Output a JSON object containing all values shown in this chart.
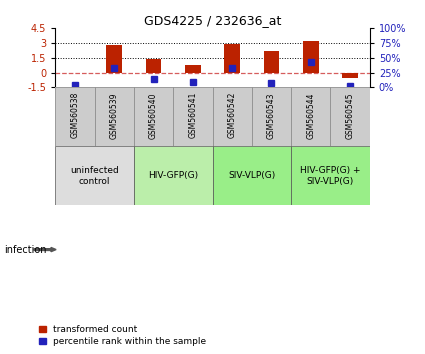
{
  "title": "GDS4225 / 232636_at",
  "samples": [
    "GSM560538",
    "GSM560539",
    "GSM560540",
    "GSM560541",
    "GSM560542",
    "GSM560543",
    "GSM560544",
    "GSM560545"
  ],
  "transformed_count": [
    -0.07,
    2.82,
    1.38,
    0.72,
    2.92,
    2.18,
    3.22,
    -0.55
  ],
  "percentile_rank": [
    4,
    33,
    14,
    9,
    33,
    7,
    43,
    2
  ],
  "ylim_left": [
    -1.5,
    4.5
  ],
  "ylim_right": [
    0,
    100
  ],
  "yticks_left": [
    -1.5,
    0,
    1.5,
    3,
    4.5
  ],
  "yticks_right": [
    0,
    25,
    50,
    75,
    100
  ],
  "bar_color": "#bb2200",
  "dot_color": "#2222bb",
  "zero_line_color": "#cc3333",
  "dotted_line_vals": [
    1.5,
    3.0
  ],
  "groups": [
    {
      "label": "uninfected\ncontrol",
      "start": 0,
      "end": 2,
      "color": "#dddddd"
    },
    {
      "label": "HIV-GFP(G)",
      "start": 2,
      "end": 4,
      "color": "#bbeeaa"
    },
    {
      "label": "SIV-VLP(G)",
      "start": 4,
      "end": 6,
      "color": "#99ee88"
    },
    {
      "label": "HIV-GFP(G) +\nSIV-VLP(G)",
      "start": 6,
      "end": 8,
      "color": "#99ee88"
    }
  ],
  "sample_bg": "#cccccc",
  "infection_label": "infection",
  "legend_items": [
    {
      "label": "transformed count",
      "color": "#bb2200"
    },
    {
      "label": "percentile rank within the sample",
      "color": "#2222bb"
    }
  ],
  "background_color": "#ffffff"
}
